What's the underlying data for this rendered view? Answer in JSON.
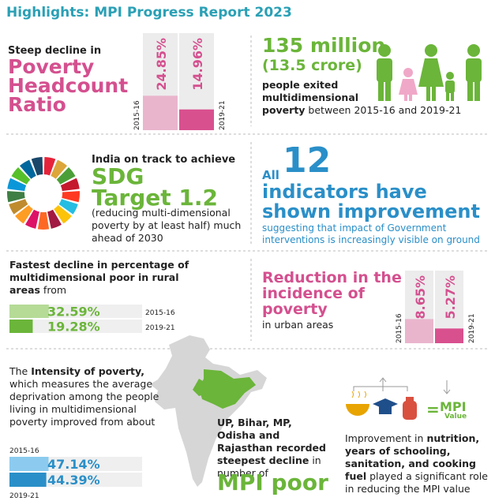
{
  "header": {
    "title": "Highlights: MPI Progress Report 2023"
  },
  "headcount": {
    "intro": "Steep decline in",
    "title": "Poverty Headcount Ratio",
    "chart": {
      "type": "bar",
      "categories": [
        "2015-16",
        "2019-21"
      ],
      "values": [
        24.85,
        14.96
      ],
      "value_labels": [
        "24.85%",
        "14.96%"
      ],
      "ylim": [
        0,
        70
      ],
      "colors": [
        "#e9b5cd",
        "#d9508f"
      ]
    }
  },
  "exited": {
    "number": "135 million",
    "sub": "(13.5 crore)",
    "text_bold_1": "people exited multidimensional",
    "text_bold_2": "poverty",
    "text": " between 2015-16 and 2019-21"
  },
  "sdg": {
    "intro": "India on track to achieve",
    "title": "SDG Target 1.2",
    "text": "(reducing multi-dimensional poverty by at least half) much ahead of 2030"
  },
  "indicators": {
    "all": "All",
    "number": "12",
    "title": "indicators have shown improvement",
    "text": "suggesting that impact of Government interventions is increasingly visible on ground"
  },
  "rural": {
    "text_bold": "Fastest decline in percentage of multidimensional poor in rural areas",
    "text": " from",
    "chart": {
      "type": "hbar",
      "categories": [
        "2015-16",
        "2019-21"
      ],
      "values": [
        32.59,
        19.28
      ],
      "value_labels": [
        "32.59%",
        "19.28%"
      ],
      "xlim": [
        0,
        110
      ],
      "colors": [
        "#b5db97",
        "#6bb53a"
      ]
    }
  },
  "urban": {
    "title": "Reduction in the incidence of poverty",
    "text": "in urban areas",
    "chart": {
      "type": "bar",
      "categories": [
        "2015-16",
        "2019-21"
      ],
      "values": [
        8.65,
        5.27
      ],
      "value_labels": [
        "8.65%",
        "5.27%"
      ],
      "ylim": [
        0,
        26
      ],
      "colors": [
        "#e9b5cd",
        "#d9508f"
      ]
    }
  },
  "intensity": {
    "text_1": "The ",
    "text_bold": "Intensity of poverty,",
    "text_2": " which measures the average deprivation among the people living in multidimensional poverty improved from about",
    "chart": {
      "type": "hbar",
      "categories": [
        "2015-16",
        "2019-21"
      ],
      "values": [
        47.14,
        44.39
      ],
      "value_labels": [
        "47.14%",
        "44.39%"
      ],
      "xlim": [
        0,
        160
      ],
      "colors": [
        "#8ccbef",
        "#2a8fc8"
      ]
    }
  },
  "states": {
    "text_bold": "UP, Bihar, MP, Odisha and Rajasthan recorded steepest decline",
    "text": " in number of",
    "highlight": "MPI poor"
  },
  "drivers": {
    "mpi": "MPI",
    "mpi_sub": "Value",
    "text_1": "Improvement in ",
    "text_bold": "nutrition, years of schooling, sanitation, and cooking fuel",
    "text_2": " played a significant role in reducing the MPI value"
  }
}
